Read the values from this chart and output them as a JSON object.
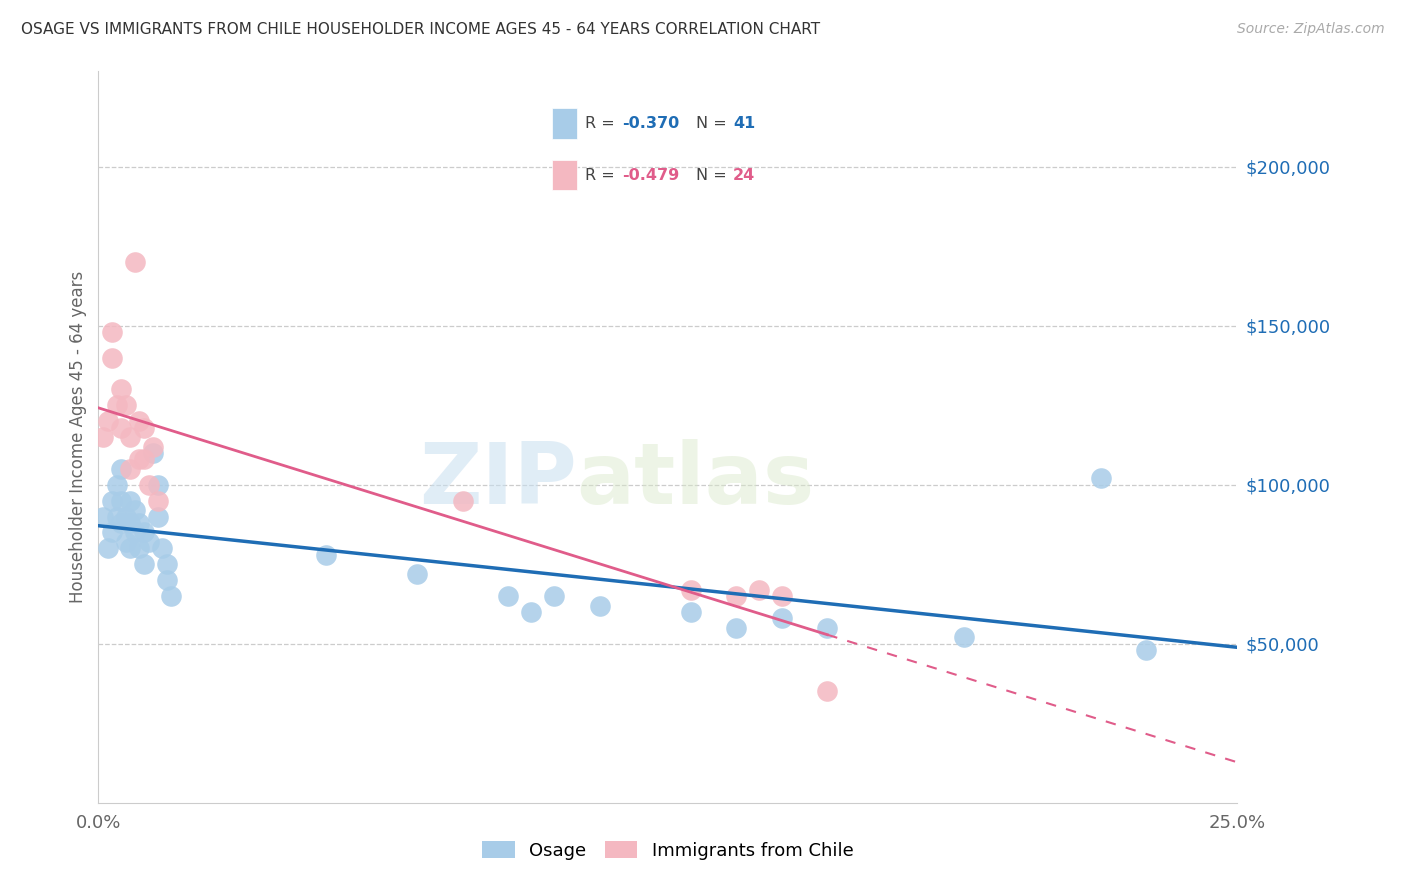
{
  "title": "OSAGE VS IMMIGRANTS FROM CHILE HOUSEHOLDER INCOME AGES 45 - 64 YEARS CORRELATION CHART",
  "source": "Source: ZipAtlas.com",
  "ylabel": "Householder Income Ages 45 - 64 years",
  "xlim": [
    0.0,
    0.25
  ],
  "ylim": [
    0,
    230000
  ],
  "xticks": [
    0.0,
    0.05,
    0.1,
    0.15,
    0.2,
    0.25
  ],
  "xticklabels": [
    "0.0%",
    "",
    "",
    "",
    "",
    "25.0%"
  ],
  "ytick_values": [
    50000,
    100000,
    150000,
    200000
  ],
  "ytick_labels": [
    "$50,000",
    "$100,000",
    "$150,000",
    "$200,000"
  ],
  "blue_scatter_color": "#a8cce8",
  "pink_scatter_color": "#f4b8c1",
  "blue_line_color": "#1f6db5",
  "pink_line_color": "#e05c8a",
  "legend_r1": "R = -0.370",
  "legend_n1": "N =  41",
  "legend_r2": "R = -0.479",
  "legend_n2": "N =  24",
  "watermark_zip": "ZIP",
  "watermark_atlas": "atlas",
  "osage_x": [
    0.001,
    0.002,
    0.003,
    0.003,
    0.004,
    0.004,
    0.005,
    0.005,
    0.005,
    0.006,
    0.006,
    0.007,
    0.007,
    0.007,
    0.008,
    0.008,
    0.009,
    0.009,
    0.01,
    0.01,
    0.011,
    0.012,
    0.013,
    0.013,
    0.014,
    0.015,
    0.015,
    0.016,
    0.05,
    0.07,
    0.09,
    0.095,
    0.1,
    0.11,
    0.13,
    0.14,
    0.15,
    0.16,
    0.19,
    0.22,
    0.23
  ],
  "osage_y": [
    90000,
    80000,
    95000,
    85000,
    100000,
    90000,
    105000,
    95000,
    88000,
    90000,
    82000,
    95000,
    88000,
    80000,
    92000,
    85000,
    88000,
    80000,
    85000,
    75000,
    82000,
    110000,
    100000,
    90000,
    80000,
    75000,
    70000,
    65000,
    78000,
    72000,
    65000,
    60000,
    65000,
    62000,
    60000,
    55000,
    58000,
    55000,
    52000,
    102000,
    48000
  ],
  "chile_x": [
    0.001,
    0.002,
    0.003,
    0.003,
    0.004,
    0.005,
    0.005,
    0.006,
    0.007,
    0.007,
    0.008,
    0.009,
    0.009,
    0.01,
    0.01,
    0.011,
    0.012,
    0.013,
    0.08,
    0.13,
    0.14,
    0.145,
    0.15,
    0.16
  ],
  "chile_y": [
    115000,
    120000,
    148000,
    140000,
    125000,
    130000,
    118000,
    125000,
    115000,
    105000,
    170000,
    120000,
    108000,
    118000,
    108000,
    100000,
    112000,
    95000,
    95000,
    67000,
    65000,
    67000,
    65000,
    35000
  ]
}
